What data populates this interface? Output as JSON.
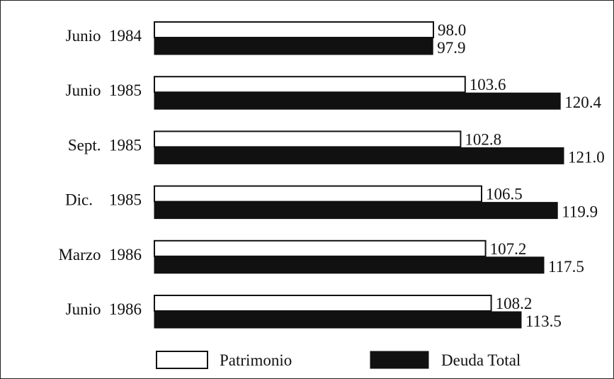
{
  "chart_data": {
    "type": "bar",
    "orientation": "horizontal",
    "categories": [
      "Junio  1984",
      "Junio  1985",
      "Sept.  1985",
      "Dic.    1985",
      "Marzo  1986",
      "Junio  1986"
    ],
    "series": [
      {
        "name": "Patrimonio",
        "values": [
          98.0,
          103.6,
          102.8,
          106.5,
          107.2,
          108.2
        ],
        "labels": [
          "98.0",
          "103.6",
          "102.8",
          "106.5",
          "107.2",
          "108.2"
        ],
        "color": "#ffffff"
      },
      {
        "name": "Deuda Total",
        "values": [
          97.9,
          120.4,
          121.0,
          119.9,
          117.5,
          113.5
        ],
        "labels": [
          "97.9",
          "120.4",
          "121.0",
          "119.9",
          "117.5",
          "113.5"
        ],
        "color": "#111111"
      }
    ],
    "title": "",
    "xlabel": "",
    "ylabel": "",
    "grid": false,
    "legend_position": "bottom"
  }
}
